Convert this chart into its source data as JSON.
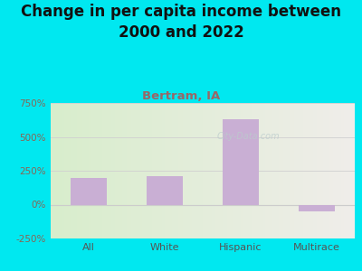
{
  "title": "Change in per capita income between\n2000 and 2022",
  "subtitle": "Bertram, IA",
  "categories": [
    "All",
    "White",
    "Hispanic",
    "Multirace"
  ],
  "values": [
    200,
    210,
    630,
    -50
  ],
  "bar_color": "#c9afd4",
  "title_fontsize": 12,
  "subtitle_fontsize": 9.5,
  "subtitle_color": "#996666",
  "title_color": "#111111",
  "background_outer": "#00e8f0",
  "background_inner_left": "#d8edcc",
  "background_inner_right": "#f0eeea",
  "ylim": [
    -250,
    750
  ],
  "yticks": [
    -250,
    0,
    250,
    500,
    750
  ],
  "ytick_labels": [
    "-250%",
    "0%",
    "250%",
    "500%",
    "750%"
  ],
  "ytick_color": "#886655",
  "xtick_color": "#555555",
  "grid_color": "#d0d0d0",
  "watermark": "City-Data.com"
}
